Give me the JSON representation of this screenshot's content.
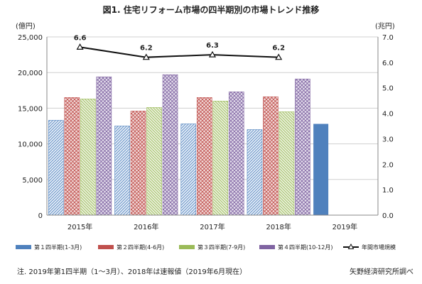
{
  "chart_data": {
    "type": "bar",
    "title": "図1. 住宅リフォーム市場の四半期別の市場トレンド推移",
    "categories": [
      "2015年",
      "2016年",
      "2017年",
      "2018年",
      "2019年"
    ],
    "y_left": {
      "unit": "(億円)",
      "range": [
        0,
        25000
      ],
      "ticks": [
        "0",
        "5,000",
        "10,000",
        "15,000",
        "20,000",
        "25,000"
      ]
    },
    "y_right": {
      "unit": "(兆円)",
      "range": [
        0,
        7
      ],
      "ticks": [
        "0.0",
        "1.0",
        "2.0",
        "3.0",
        "4.0",
        "5.0",
        "6.0",
        "7.0"
      ]
    },
    "series": [
      {
        "name": "第１四半期(1-3月)",
        "color": "#4f81bd",
        "values": [
          13300,
          12500,
          12800,
          12000,
          12800
        ]
      },
      {
        "name": "第２四半期(4-6月)",
        "color": "#c0504d",
        "values": [
          16500,
          14600,
          16500,
          16600,
          null
        ]
      },
      {
        "name": "第３四半期(7-9月)",
        "color": "#9bbb59",
        "values": [
          16300,
          15100,
          16000,
          14500,
          null
        ]
      },
      {
        "name": "第４四半期(10-12月)",
        "color": "#8064a2",
        "values": [
          19400,
          19700,
          17300,
          19100,
          null
        ]
      }
    ],
    "line_series": {
      "name": "年間市場規模",
      "axis": "right",
      "values": [
        6.6,
        6.2,
        6.3,
        6.2,
        null
      ],
      "labels": [
        "6.6",
        "6.2",
        "6.3",
        "6.2",
        ""
      ]
    },
    "legend_position": "bottom",
    "grid": true
  },
  "footer": {
    "note": "注. 2019年第1四半期（1～3月）、2018年は速報値（2019年6月現在）",
    "source": "矢野経済研究所調べ"
  }
}
